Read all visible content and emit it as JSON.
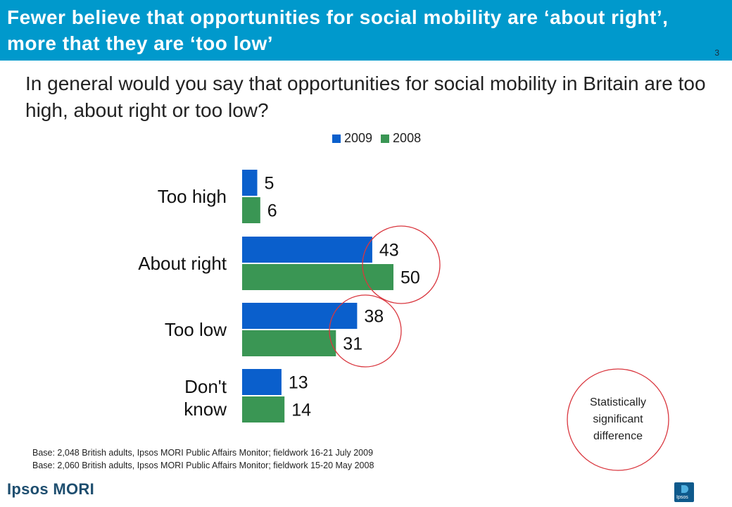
{
  "header": {
    "title": "Fewer believe that opportunities for social mobility are ‘about right’, more that they are ‘too low’",
    "slide_number": "3"
  },
  "question": "In general would you say that opportunities for social mobility in Britain are too high, about right or too low?",
  "annotation": {
    "text": "Statistically significant difference"
  },
  "footnotes": [
    "Base: 2,048 British adults, Ipsos MORI Public Affairs Monitor; fieldwork 16-21 July 2009",
    "Base: 2,060 British adults, Ipsos MORI Public Affairs Monitor; fieldwork 15-20 May 2008"
  ],
  "branding": {
    "logo": "Ipsos MORI",
    "corner_logo": "Ipsos"
  },
  "colors": {
    "header": "#0099cc",
    "series_2009": "#0a5fcc",
    "series_2008": "#3a9654",
    "highlight_circle": "#d9363e"
  },
  "chart_data": {
    "type": "bar",
    "orientation": "horizontal",
    "categories": [
      "Too high",
      "About right",
      "Too low",
      "Don't know"
    ],
    "series": [
      {
        "name": "2009",
        "values": [
          5,
          43,
          38,
          13
        ],
        "color": "#0a5fcc"
      },
      {
        "name": "2008",
        "values": [
          6,
          50,
          31,
          14
        ],
        "color": "#3a9654"
      }
    ],
    "data_labels": true,
    "highlighted_categories": [
      "About right",
      "Too low"
    ],
    "legend": "top",
    "grid": false
  }
}
